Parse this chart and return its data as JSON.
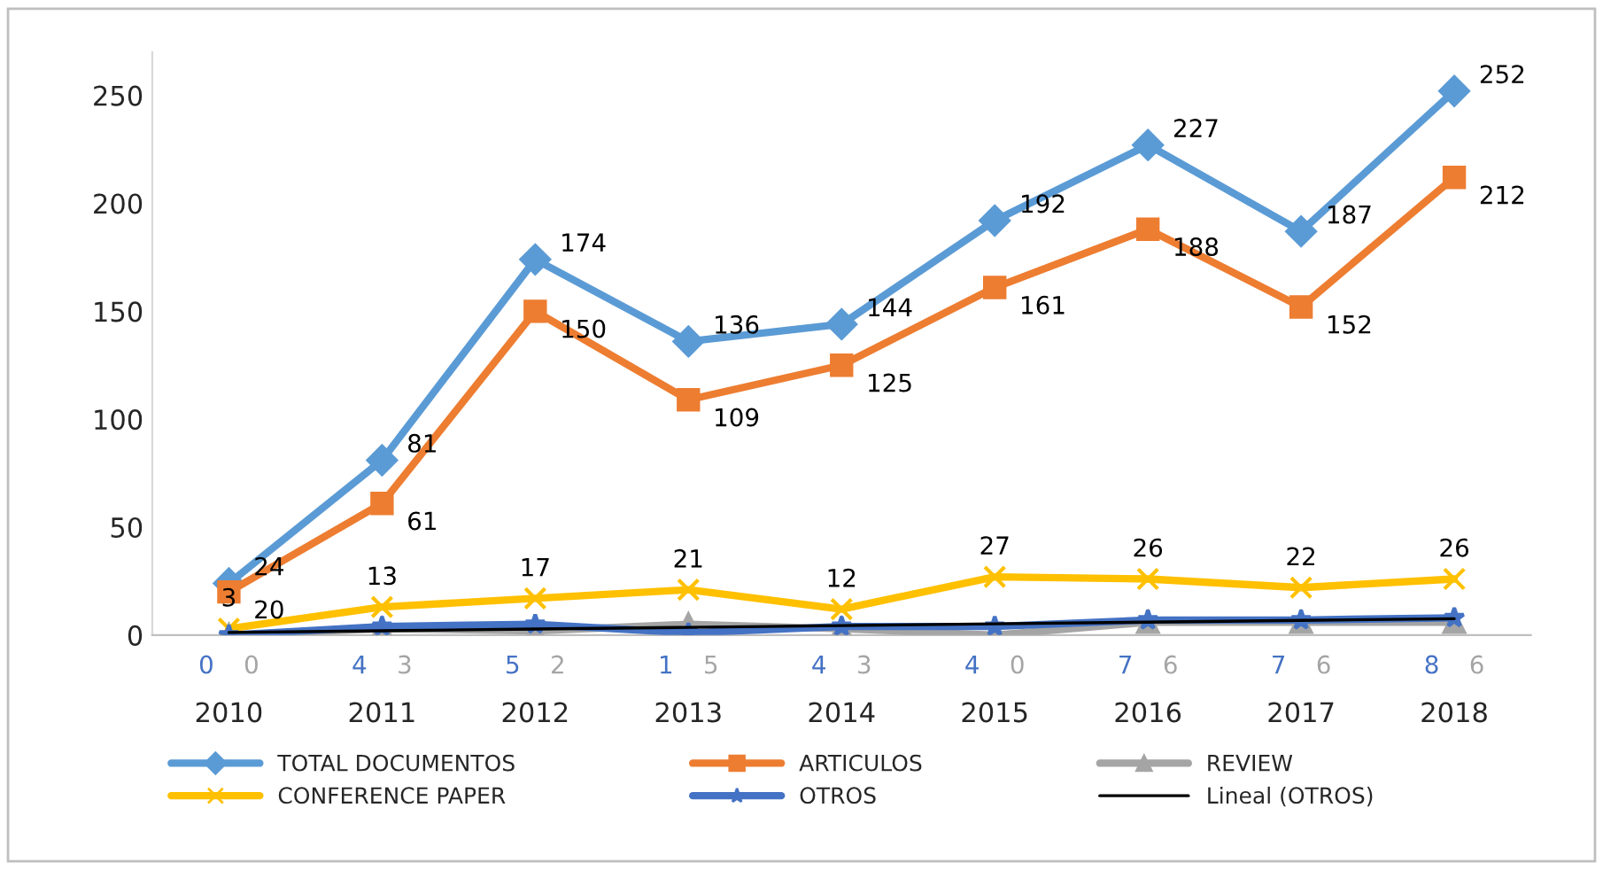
{
  "chart_data": {
    "type": "line",
    "categories": [
      "2010",
      "2011",
      "2012",
      "2013",
      "2014",
      "2015",
      "2016",
      "2017",
      "2018"
    ],
    "series": [
      {
        "name": "TOTAL DOCUMENTOS",
        "color": "#5b9bd5",
        "marker": "diamond",
        "values": [
          24,
          81,
          174,
          136,
          144,
          192,
          227,
          187,
          252
        ]
      },
      {
        "name": "ARTICULOS",
        "color": "#ed7d31",
        "marker": "square",
        "values": [
          20,
          61,
          150,
          109,
          125,
          161,
          188,
          152,
          212
        ]
      },
      {
        "name": "REVIEW",
        "color": "#a5a5a5",
        "marker": "triangle",
        "values": [
          0,
          3,
          2,
          5,
          3,
          0,
          6,
          6,
          6
        ]
      },
      {
        "name": "CONFERENCE PAPER",
        "color": "#ffc000",
        "marker": "cross",
        "values": [
          3,
          13,
          17,
          21,
          12,
          27,
          26,
          22,
          26
        ]
      },
      {
        "name": "OTROS",
        "color": "#4472c4",
        "marker": "star",
        "values": [
          0,
          4,
          5,
          1,
          4,
          4,
          7,
          7,
          8
        ]
      },
      {
        "name": "Lineal (OTROS)",
        "color": "#000000",
        "marker": "none",
        "values": [
          1.2,
          2.0,
          2.8,
          3.6,
          4.4,
          5.2,
          6.0,
          6.8,
          7.6
        ],
        "data_labels": false
      }
    ],
    "ylim": [
      0,
      270
    ],
    "yticks": [
      0,
      50,
      100,
      150,
      200,
      250
    ],
    "data_labels": true,
    "grid": false,
    "legend": "bottom"
  }
}
